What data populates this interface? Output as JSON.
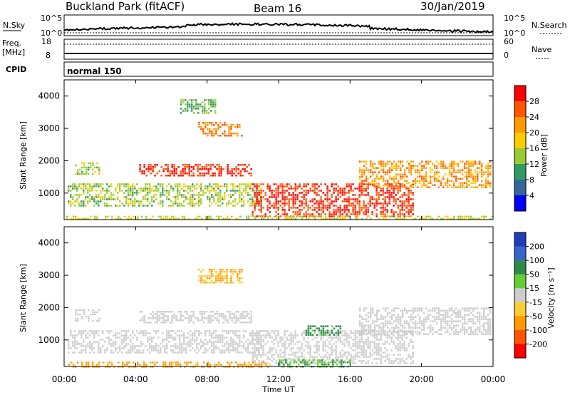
{
  "header": {
    "station": "Buckland Park (fitACF)",
    "beam": "Beam 16",
    "date": "30/Jan/2019"
  },
  "info_panels": {
    "nsky_label": "N.Sky",
    "nsearch_label": "N.Search",
    "noise_ticks": [
      "10^5",
      "10^0"
    ],
    "freq_label_1": "Freq.",
    "freq_label_2": "[MHz]",
    "freq_ticks": [
      "18",
      "8"
    ],
    "nave_label": "Nave",
    "nave_ticks": [
      "60",
      "0"
    ],
    "cpid_label": "CPID",
    "cpid_value": "normal 150"
  },
  "x_axis": {
    "label": "Time UT",
    "ticks": [
      "00:00",
      "04:00",
      "08:00",
      "12:00",
      "16:00",
      "20:00",
      "00:00"
    ],
    "range_hours": [
      0,
      24
    ]
  },
  "chart_data": [
    {
      "type": "heatmap",
      "name": "power",
      "ylabel": "Slant Range [km]",
      "yticks": [
        1000,
        2000,
        3000,
        4000
      ],
      "ylim": [
        180,
        4500
      ],
      "colorbar": {
        "label": "Power [dB]",
        "ticks": [
          "28",
          "24",
          "20",
          "16",
          "12",
          "8",
          "4"
        ],
        "colors": [
          "#ff0000",
          "#ff5500",
          "#ff9900",
          "#ffcc00",
          "#99cc33",
          "#339966",
          "#336699",
          "#0000ff"
        ]
      },
      "echo_regions_hours_km": [
        {
          "t": [
            0.6,
            2.0
          ],
          "r": [
            1600,
            1950
          ],
          "v": 12
        },
        {
          "t": [
            7.5,
            10.0
          ],
          "r": [
            2800,
            3200
          ],
          "v": 22
        },
        {
          "t": [
            6.5,
            8.5
          ],
          "r": [
            3500,
            3900
          ],
          "v": 10
        },
        {
          "t": [
            4.2,
            10.5
          ],
          "r": [
            1550,
            1900
          ],
          "v": 26
        },
        {
          "t": [
            0.2,
            11.0
          ],
          "r": [
            600,
            1300
          ],
          "v": 12
        },
        {
          "t": [
            10.5,
            19.5
          ],
          "r": [
            250,
            1300
          ],
          "v": 26
        },
        {
          "t": [
            16.5,
            23.8
          ],
          "r": [
            1200,
            2000
          ],
          "v": 20
        },
        {
          "t": [
            0.0,
            24.0
          ],
          "r": [
            180,
            300
          ],
          "v": 14
        }
      ]
    },
    {
      "type": "heatmap",
      "name": "velocity",
      "ylabel": "Slant Range [km]",
      "yticks": [
        1000,
        2000,
        3000,
        4000
      ],
      "ylim": [
        180,
        4500
      ],
      "colorbar": {
        "label": "Velocity [m s⁻¹]",
        "ticks": [
          "200",
          "100",
          "50",
          "15",
          "-15",
          "-50",
          "-100",
          "-200"
        ],
        "colors": [
          "#1f3fb7",
          "#3366cc",
          "#2f8a4a",
          "#66cc33",
          "#cccccc",
          "#ffcc33",
          "#ff9900",
          "#ff5500",
          "#ff0000"
        ]
      },
      "echo_regions_hours_km": [
        {
          "t": [
            0.6,
            2.0
          ],
          "r": [
            1600,
            1950
          ],
          "v": 0
        },
        {
          "t": [
            7.5,
            10.0
          ],
          "r": [
            2800,
            3200
          ],
          "v": -30
        },
        {
          "t": [
            4.2,
            10.5
          ],
          "r": [
            1550,
            1900
          ],
          "v": 0
        },
        {
          "t": [
            0.2,
            11.0
          ],
          "r": [
            600,
            1300
          ],
          "v": 0
        },
        {
          "t": [
            10.5,
            19.5
          ],
          "r": [
            250,
            1300
          ],
          "v": 0
        },
        {
          "t": [
            13.5,
            15.5
          ],
          "r": [
            1150,
            1450
          ],
          "v": 40
        },
        {
          "t": [
            12.0,
            16.0
          ],
          "r": [
            180,
            400
          ],
          "v": 30
        },
        {
          "t": [
            16.5,
            23.8
          ],
          "r": [
            1200,
            2000
          ],
          "v": 0
        },
        {
          "t": [
            0.0,
            11.5
          ],
          "r": [
            180,
            330
          ],
          "v": -40
        }
      ]
    }
  ]
}
